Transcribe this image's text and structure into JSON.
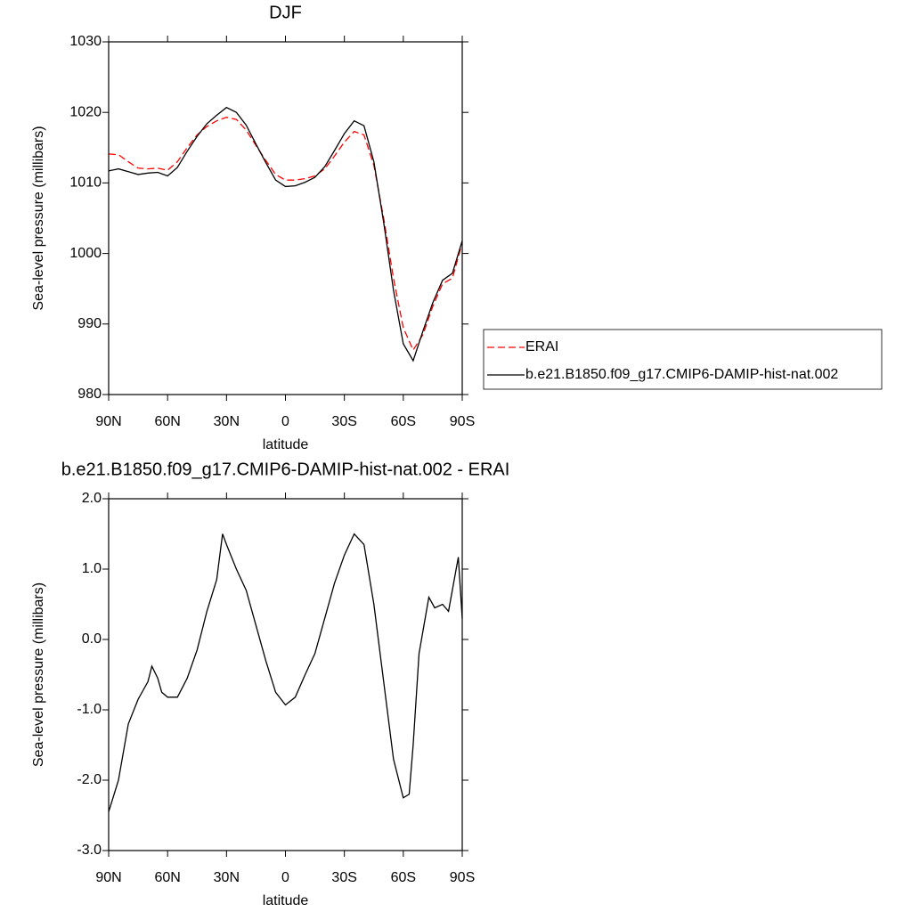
{
  "chart_data": [
    {
      "type": "line",
      "title": "DJF",
      "x_label": "latitude",
      "y_label": "Sea-level pressure (millibars)",
      "x": [
        90,
        85,
        80,
        75,
        70,
        65,
        60,
        55,
        50,
        45,
        40,
        35,
        30,
        25,
        20,
        15,
        10,
        5,
        0,
        -5,
        -10,
        -15,
        -20,
        -25,
        -30,
        -35,
        -40,
        -45,
        -50,
        -55,
        -60,
        -65,
        -70,
        -75,
        -80,
        -85,
        -90
      ],
      "series": [
        {
          "name": "ERAI",
          "color": "#ff0000",
          "dash": "dashed",
          "values": [
            1014.1,
            1014.0,
            1013.0,
            1012.1,
            1012.0,
            1012.1,
            1011.8,
            1013.0,
            1015.0,
            1016.8,
            1018.0,
            1018.8,
            1019.3,
            1019.0,
            1017.5,
            1015.3,
            1013.2,
            1011.2,
            1010.4,
            1010.4,
            1010.6,
            1011.0,
            1012.0,
            1013.8,
            1015.8,
            1017.3,
            1016.8,
            1012.5,
            1005.0,
            996.5,
            989.5,
            986.3,
            988.5,
            992.5,
            995.7,
            996.5,
            1001.5
          ]
        },
        {
          "name": "b.e21.B1850.f09_g17.CMIP6-DAMIP-hist-nat.002",
          "color": "#000000",
          "dash": "solid",
          "values": [
            1011.7,
            1012.0,
            1011.6,
            1011.2,
            1011.4,
            1011.5,
            1011.0,
            1012.2,
            1014.5,
            1016.6,
            1018.4,
            1019.6,
            1020.7,
            1020.0,
            1018.2,
            1015.5,
            1012.9,
            1010.4,
            1009.5,
            1009.6,
            1010.1,
            1010.8,
            1012.3,
            1014.6,
            1017.0,
            1018.8,
            1018.1,
            1013.0,
            1004.4,
            994.8,
            987.2,
            984.8,
            989.0,
            993.0,
            996.2,
            997.2,
            1001.8
          ]
        }
      ],
      "xlim": [
        90,
        -90
      ],
      "xticks": [
        {
          "value": 90,
          "label": "90N"
        },
        {
          "value": 60,
          "label": "60N"
        },
        {
          "value": 30,
          "label": "30N"
        },
        0,
        {
          "value": -30,
          "label": "30S"
        },
        {
          "value": -60,
          "label": "60S"
        },
        {
          "value": -90,
          "label": "90S"
        }
      ],
      "ylim": [
        980,
        1030
      ],
      "yticks": [
        980,
        990,
        1000,
        1010,
        1020,
        1030
      ],
      "legend": "right"
    },
    {
      "type": "line",
      "title": "b.e21.B1850.f09_g17.CMIP6-DAMIP-hist-nat.002 - ERAI",
      "x_label": "latitude",
      "y_label": "Sea-level pressure (millibars)",
      "x": [
        90,
        85,
        80,
        75,
        70,
        68,
        65,
        63,
        60,
        55,
        50,
        45,
        40,
        35,
        32,
        30,
        25,
        20,
        15,
        10,
        5,
        0,
        -5,
        -10,
        -15,
        -20,
        -25,
        -30,
        -35,
        -40,
        -45,
        -50,
        -55,
        -60,
        -63,
        -65,
        -68,
        -73,
        -76,
        -80,
        -83,
        -88,
        -90
      ],
      "values": [
        -2.45,
        -2.0,
        -1.2,
        -0.85,
        -0.6,
        -0.38,
        -0.55,
        -0.75,
        -0.82,
        -0.82,
        -0.55,
        -0.15,
        0.4,
        0.85,
        1.5,
        1.35,
        1.0,
        0.7,
        0.2,
        -0.3,
        -0.75,
        -0.93,
        -0.82,
        -0.5,
        -0.2,
        0.3,
        0.8,
        1.2,
        1.5,
        1.35,
        0.5,
        -0.6,
        -1.7,
        -2.25,
        -2.2,
        -1.5,
        -0.2,
        0.6,
        0.45,
        0.5,
        0.4,
        1.17,
        0.3
      ],
      "color": "#000000",
      "xlim": [
        90,
        -90
      ],
      "xticks": [
        {
          "value": 90,
          "label": "90N"
        },
        {
          "value": 60,
          "label": "60N"
        },
        {
          "value": 30,
          "label": "30N"
        },
        0,
        {
          "value": -30,
          "label": "30S"
        },
        {
          "value": -60,
          "label": "60S"
        },
        {
          "value": -90,
          "label": "90S"
        }
      ],
      "ylim": [
        -3,
        2
      ],
      "yticks": [
        {
          "value": -3,
          "label": "-3.0"
        },
        {
          "value": -2,
          "label": "-2.0"
        },
        {
          "value": -1,
          "label": "-1.0"
        },
        {
          "value": 0,
          "label": "0.0"
        },
        {
          "value": 1,
          "label": "1.0"
        },
        {
          "value": 2,
          "label": "2.0"
        }
      ]
    }
  ]
}
